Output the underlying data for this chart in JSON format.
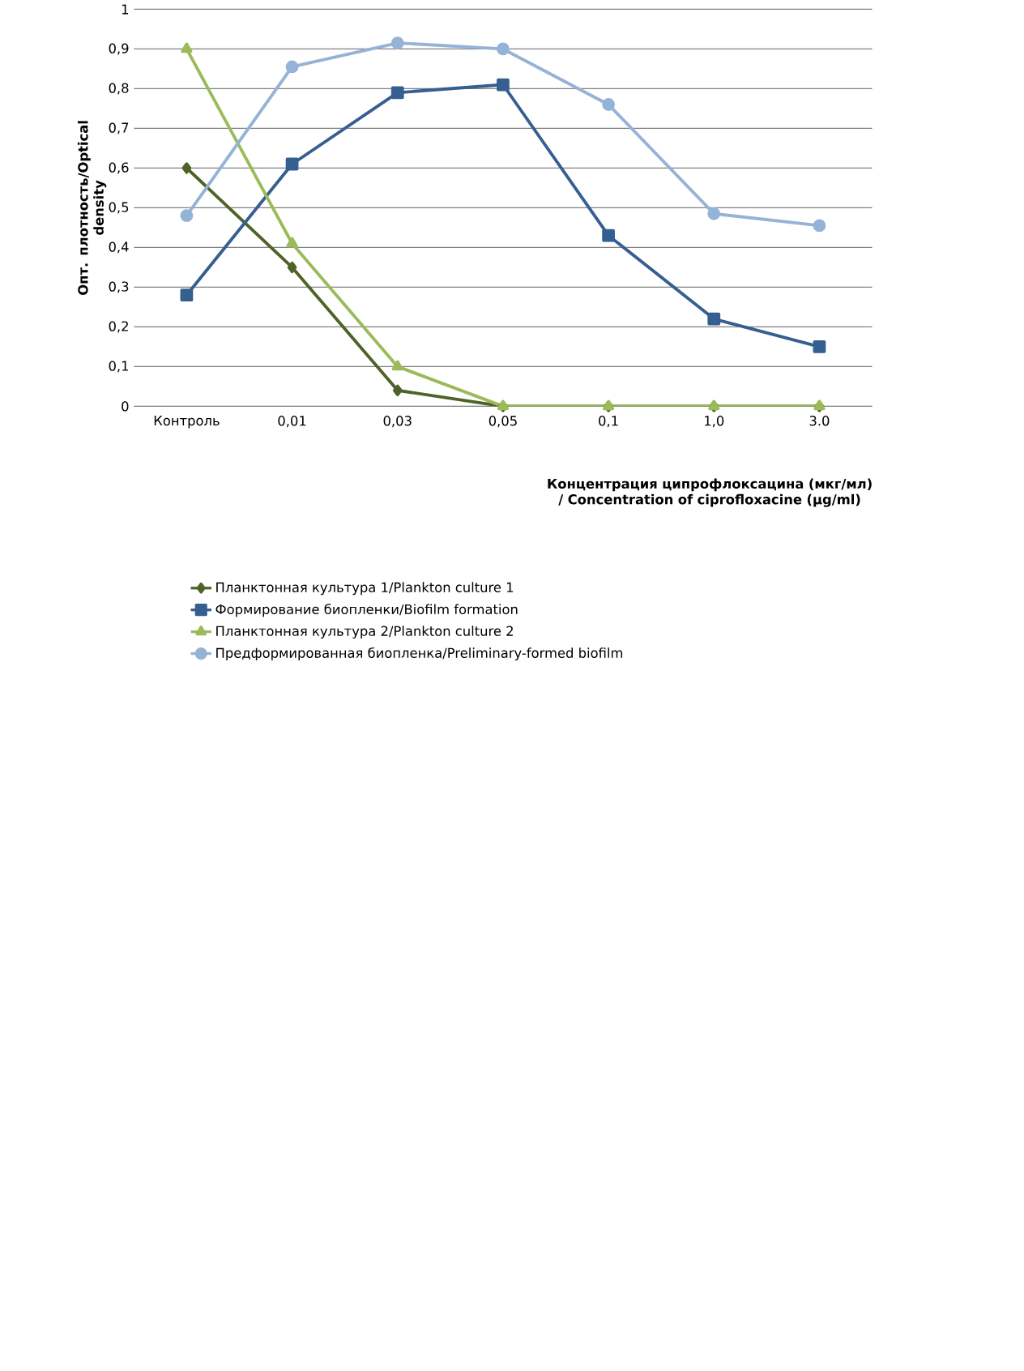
{
  "chart_data": {
    "type": "line",
    "xlabel": "Концентрация ципрофлоксацина (мкг/мл) / Concentration of ciprofloxacine (µg/ml)",
    "ylabel": "Опт. плотность/Optical density",
    "categories": [
      "Контроль",
      "0,01",
      "0,03",
      "0,05",
      "0,1",
      "1,0",
      "3.0"
    ],
    "series": [
      {
        "name": "Планктонная культура 1/Plankton culture 1",
        "color": "#4f6228",
        "marker": "diamond",
        "values": [
          0.6,
          0.35,
          0.04,
          0,
          0,
          0,
          0
        ]
      },
      {
        "name": "Формирование биопленки/Biofilm formation",
        "color": "#365f91",
        "marker": "square",
        "values": [
          0.28,
          0.61,
          0.79,
          0.81,
          0.43,
          0.22,
          0.15
        ]
      },
      {
        "name": "Планктонная культура 2/Plankton culture 2",
        "color": "#9bbb59",
        "marker": "triangle",
        "values": [
          0.9,
          0.41,
          0.1,
          0,
          0,
          0,
          0
        ]
      },
      {
        "name": "Предформированная биопленка/Preliminary-formed biofilm",
        "color": "#95b3d7",
        "marker": "circle",
        "values": [
          0.48,
          0.855,
          0.915,
          0.9,
          0.76,
          0.485,
          0.455
        ]
      }
    ],
    "ylim": [
      0,
      1
    ],
    "yticks": [
      0,
      {
        "value": 0.1,
        "label": "0,1"
      },
      {
        "value": 0.2,
        "label": "0,2"
      },
      {
        "value": 0.3,
        "label": "0,3"
      },
      {
        "value": 0.4,
        "label": "0,4"
      },
      {
        "value": 0.5,
        "label": "0,5"
      },
      {
        "value": 0.6,
        "label": "0,6"
      },
      {
        "value": 0.7,
        "label": "0,7"
      },
      {
        "value": 0.8,
        "label": "0,8"
      },
      {
        "value": 0.9,
        "label": "0,9"
      },
      1
    ],
    "grid": "y",
    "legend": "bottom"
  }
}
